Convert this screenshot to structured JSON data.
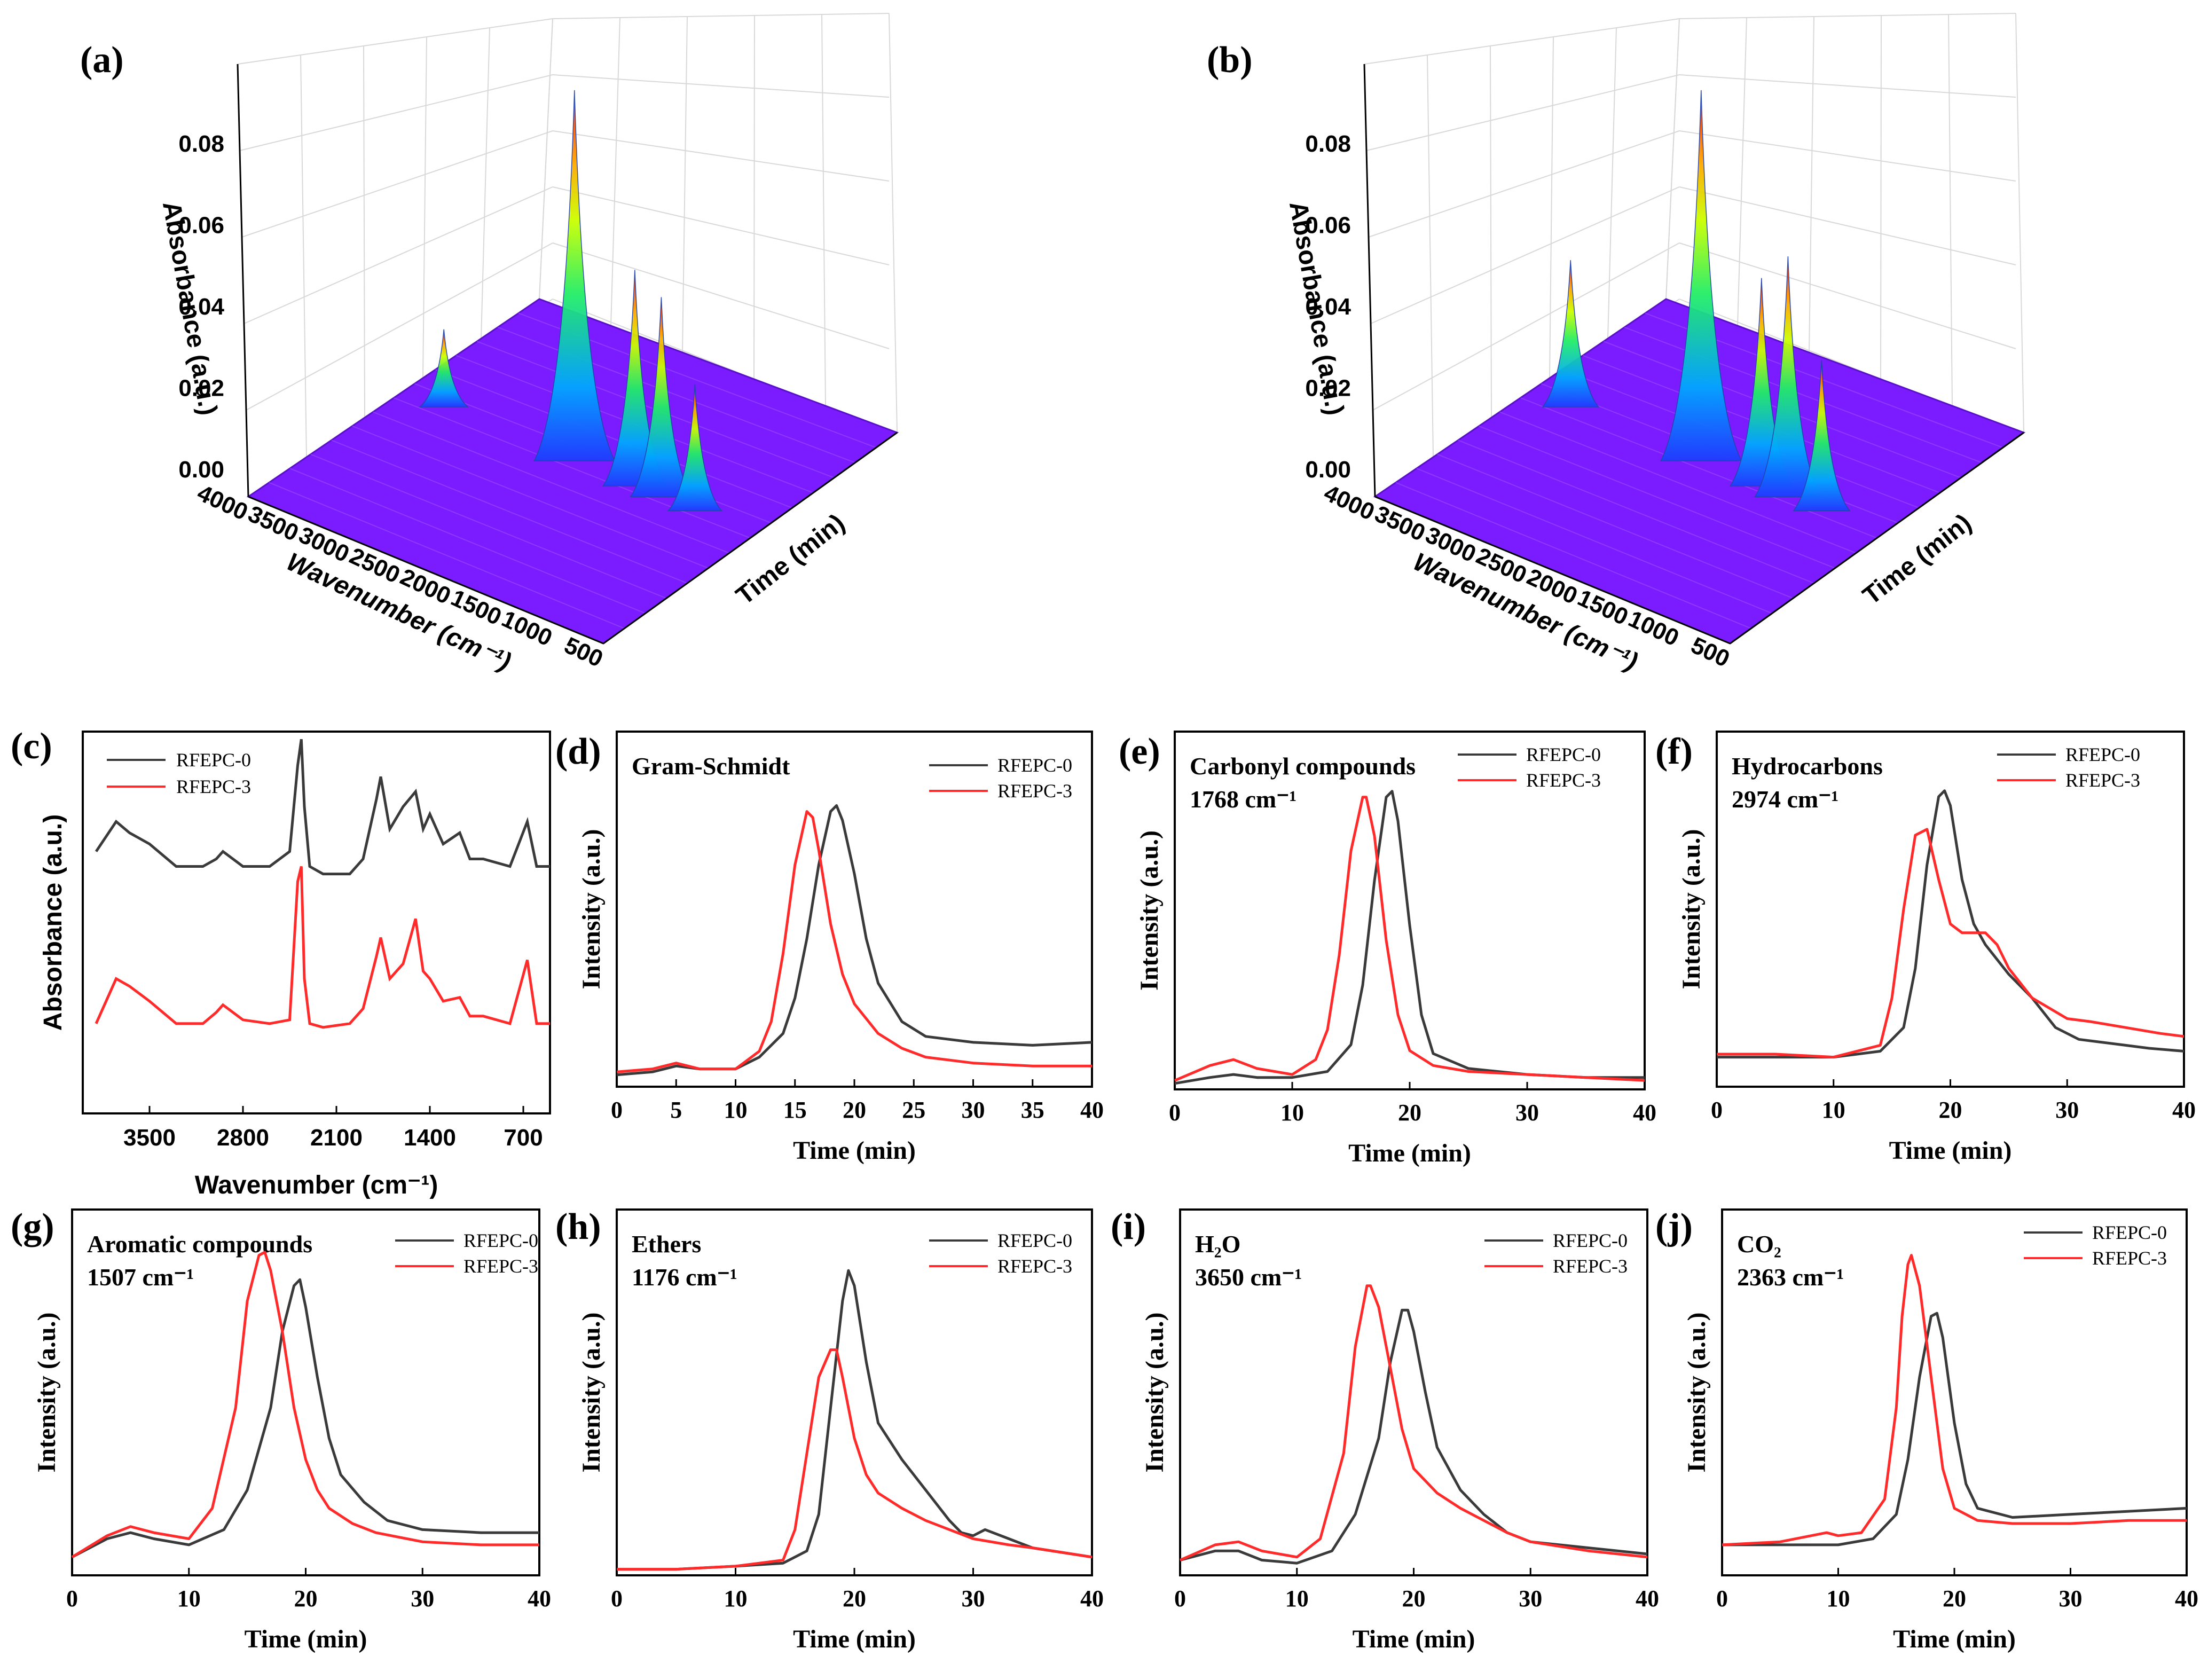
{
  "figure": {
    "series_names": [
      "RFEPC-0",
      "RFEPC-3"
    ],
    "colors": {
      "RFEPC-0": "#3a3a3a",
      "RFEPC-3": "#ff2a2a"
    }
  },
  "panels": {
    "a": {
      "label": "(a)"
    },
    "b": {
      "label": "(b)"
    },
    "c": {
      "label": "(c)"
    },
    "d": {
      "label": "(d)"
    },
    "e": {
      "label": "(e)"
    },
    "f": {
      "label": "(f)"
    },
    "g": {
      "label": "(g)"
    },
    "h": {
      "label": "(h)"
    },
    "i": {
      "label": "(i)"
    },
    "j": {
      "label": "(j)"
    }
  },
  "chart_data": [
    {
      "id": "a",
      "type": "surface3d",
      "title": "",
      "zlabel": "Absorbance (a.u.)",
      "xlabel": "Wavenumber (cm⁻¹)",
      "ylabel": "Time (min)",
      "z_ticks": [
        "0.00",
        "0.02",
        "0.04",
        "0.06",
        "0.08"
      ],
      "x_ticks": [
        "4000",
        "3500",
        "3000",
        "2500",
        "2000",
        "1500",
        "1000",
        "500"
      ],
      "peaks": [
        {
          "wavenumber": 3650,
          "absorbance": 0.018
        },
        {
          "wavenumber": 2363,
          "absorbance": 0.09
        },
        {
          "wavenumber": 1768,
          "absorbance": 0.052
        },
        {
          "wavenumber": 1507,
          "absorbance": 0.048
        },
        {
          "wavenumber": 1176,
          "absorbance": 0.03
        }
      ]
    },
    {
      "id": "b",
      "type": "surface3d",
      "title": "",
      "zlabel": "Absorbance (a.u.)",
      "xlabel": "Wavenumber (cm⁻¹)",
      "ylabel": "Time (min)",
      "z_ticks": [
        "0.00",
        "0.02",
        "0.04",
        "0.06",
        "0.08"
      ],
      "x_ticks": [
        "4000",
        "3500",
        "3000",
        "2500",
        "2000",
        "1500",
        "1000",
        "500"
      ],
      "peaks": [
        {
          "wavenumber": 3650,
          "absorbance": 0.035
        },
        {
          "wavenumber": 2363,
          "absorbance": 0.09
        },
        {
          "wavenumber": 1768,
          "absorbance": 0.05
        },
        {
          "wavenumber": 1507,
          "absorbance": 0.058
        },
        {
          "wavenumber": 1176,
          "absorbance": 0.036
        }
      ]
    },
    {
      "id": "c",
      "type": "line",
      "title": "",
      "xlabel": "Wavenumber (cm⁻¹)",
      "ylabel": "Absorbance (a.u.)",
      "x_ticks": [
        "3500",
        "2800",
        "2100",
        "1400",
        "700"
      ],
      "xlim": [
        4000,
        500
      ],
      "series": [
        {
          "name": "RFEPC-0",
          "x": [
            3900,
            3750,
            3650,
            3500,
            3300,
            3100,
            3000,
            2950,
            2800,
            2600,
            2450,
            2390,
            2363,
            2340,
            2300,
            2200,
            2000,
            1900,
            1800,
            1768,
            1700,
            1600,
            1507,
            1450,
            1400,
            1300,
            1176,
            1100,
            1000,
            800,
            670,
            600,
            500
          ],
          "y": [
            0.7,
            0.78,
            0.75,
            0.72,
            0.66,
            0.66,
            0.68,
            0.7,
            0.66,
            0.66,
            0.7,
            0.93,
            1.0,
            0.82,
            0.66,
            0.64,
            0.64,
            0.68,
            0.84,
            0.9,
            0.76,
            0.82,
            0.86,
            0.76,
            0.8,
            0.72,
            0.75,
            0.68,
            0.68,
            0.66,
            0.78,
            0.66,
            0.66
          ]
        },
        {
          "name": "RFEPC-3",
          "x": [
            3900,
            3750,
            3650,
            3500,
            3300,
            3100,
            3000,
            2950,
            2800,
            2600,
            2450,
            2390,
            2363,
            2340,
            2300,
            2200,
            2000,
            1900,
            1800,
            1768,
            1700,
            1600,
            1507,
            1450,
            1400,
            1300,
            1176,
            1100,
            1000,
            800,
            670,
            600,
            500
          ],
          "y": [
            0.24,
            0.36,
            0.34,
            0.3,
            0.24,
            0.24,
            0.27,
            0.29,
            0.25,
            0.24,
            0.25,
            0.62,
            0.66,
            0.36,
            0.24,
            0.23,
            0.24,
            0.28,
            0.42,
            0.47,
            0.36,
            0.4,
            0.52,
            0.38,
            0.36,
            0.3,
            0.31,
            0.26,
            0.26,
            0.24,
            0.41,
            0.24,
            0.24
          ]
        }
      ]
    },
    {
      "id": "d",
      "type": "line",
      "title": "Gram-Schmidt",
      "xlabel": "Time (min)",
      "ylabel": "Intensity (a.u.)",
      "x_ticks": [
        "0",
        "5",
        "10",
        "15",
        "20",
        "25",
        "30",
        "35",
        "40"
      ],
      "xlim": [
        0,
        40
      ],
      "ylim": [
        0,
        1.2
      ],
      "series": [
        {
          "name": "RFEPC-0",
          "x": [
            0,
            3,
            5,
            7,
            10,
            12,
            14,
            15,
            16,
            17,
            18,
            18.5,
            19,
            20,
            21,
            22,
            24,
            26,
            30,
            35,
            40
          ],
          "y": [
            0.04,
            0.05,
            0.07,
            0.06,
            0.06,
            0.1,
            0.18,
            0.3,
            0.5,
            0.75,
            0.93,
            0.95,
            0.9,
            0.72,
            0.5,
            0.35,
            0.22,
            0.17,
            0.15,
            0.14,
            0.15
          ]
        },
        {
          "name": "RFEPC-3",
          "x": [
            0,
            3,
            5,
            7,
            10,
            12,
            13,
            14,
            15,
            16,
            16.5,
            17,
            18,
            19,
            20,
            22,
            24,
            26,
            30,
            35,
            40
          ],
          "y": [
            0.05,
            0.06,
            0.08,
            0.06,
            0.06,
            0.12,
            0.22,
            0.45,
            0.75,
            0.93,
            0.91,
            0.8,
            0.55,
            0.38,
            0.28,
            0.18,
            0.13,
            0.1,
            0.08,
            0.07,
            0.07
          ]
        }
      ]
    },
    {
      "id": "e",
      "type": "line",
      "title": "Carbonyl compounds",
      "subtitle": "1768 cm⁻¹",
      "xlabel": "Time (min)",
      "ylabel": "Intensity (a.u.)",
      "x_ticks": [
        "0",
        "10",
        "20",
        "30",
        "40"
      ],
      "xlim": [
        0,
        40
      ],
      "ylim": [
        0,
        1.2
      ],
      "series": [
        {
          "name": "RFEPC-0",
          "x": [
            0,
            3,
            5,
            7,
            10,
            13,
            15,
            16,
            17,
            18,
            18.5,
            19,
            20,
            21,
            22,
            25,
            30,
            35,
            40
          ],
          "y": [
            0.02,
            0.04,
            0.05,
            0.04,
            0.04,
            0.06,
            0.15,
            0.35,
            0.7,
            0.98,
            1.0,
            0.9,
            0.55,
            0.25,
            0.12,
            0.07,
            0.05,
            0.04,
            0.04
          ]
        },
        {
          "name": "RFEPC-3",
          "x": [
            0,
            3,
            5,
            7,
            10,
            12,
            13,
            14,
            15,
            16,
            16.3,
            17,
            18,
            19,
            20,
            22,
            25,
            30,
            35,
            40
          ],
          "y": [
            0.03,
            0.08,
            0.1,
            0.07,
            0.05,
            0.1,
            0.2,
            0.45,
            0.8,
            0.98,
            0.98,
            0.85,
            0.5,
            0.25,
            0.13,
            0.08,
            0.06,
            0.05,
            0.04,
            0.03
          ]
        }
      ]
    },
    {
      "id": "f",
      "type": "line",
      "title": "Hydrocarbons",
      "subtitle": "2974 cm⁻¹",
      "xlabel": "Time (min)",
      "ylabel": "Intensity (a.u.)",
      "x_ticks": [
        "0",
        "10",
        "20",
        "30",
        "40"
      ],
      "xlim": [
        0,
        40
      ],
      "ylim": [
        0,
        1.2
      ],
      "series": [
        {
          "name": "RFEPC-0",
          "x": [
            0,
            5,
            10,
            14,
            16,
            17,
            18,
            19,
            19.5,
            20,
            21,
            22,
            23,
            25,
            27,
            29,
            31,
            33,
            35,
            37,
            40
          ],
          "y": [
            0.1,
            0.1,
            0.1,
            0.12,
            0.2,
            0.4,
            0.75,
            0.98,
            1.0,
            0.95,
            0.7,
            0.55,
            0.48,
            0.38,
            0.3,
            0.2,
            0.16,
            0.15,
            0.14,
            0.13,
            0.12
          ]
        },
        {
          "name": "RFEPC-3",
          "x": [
            0,
            5,
            10,
            14,
            15,
            16,
            17,
            18,
            19,
            20,
            21,
            22,
            23,
            24,
            25,
            27,
            30,
            32,
            35,
            38,
            40
          ],
          "y": [
            0.11,
            0.11,
            0.1,
            0.14,
            0.3,
            0.6,
            0.85,
            0.87,
            0.7,
            0.55,
            0.52,
            0.52,
            0.52,
            0.48,
            0.4,
            0.3,
            0.23,
            0.22,
            0.2,
            0.18,
            0.17
          ]
        }
      ]
    },
    {
      "id": "g",
      "type": "line",
      "title": "Aromatic compounds",
      "subtitle": "1507 cm⁻¹",
      "xlabel": "Time (min)",
      "ylabel": "Intensity (a.u.)",
      "x_ticks": [
        "0",
        "10",
        "20",
        "30",
        "40"
      ],
      "xlim": [
        0,
        40
      ],
      "ylim": [
        0,
        1.2
      ],
      "series": [
        {
          "name": "RFEPC-0",
          "x": [
            0,
            3,
            5,
            7,
            10,
            13,
            15,
            17,
            18,
            19,
            19.5,
            20,
            21,
            22,
            23,
            25,
            27,
            30,
            35,
            40
          ],
          "y": [
            0.06,
            0.12,
            0.14,
            0.12,
            0.1,
            0.15,
            0.28,
            0.55,
            0.8,
            0.95,
            0.97,
            0.88,
            0.65,
            0.45,
            0.33,
            0.24,
            0.18,
            0.15,
            0.14,
            0.14
          ]
        },
        {
          "name": "RFEPC-3",
          "x": [
            0,
            3,
            5,
            7,
            10,
            12,
            14,
            15,
            16,
            16.5,
            17,
            18,
            19,
            20,
            21,
            22,
            24,
            26,
            30,
            35,
            40
          ],
          "y": [
            0.06,
            0.13,
            0.16,
            0.14,
            0.12,
            0.22,
            0.55,
            0.9,
            1.05,
            1.06,
            1.0,
            0.8,
            0.55,
            0.38,
            0.28,
            0.22,
            0.17,
            0.14,
            0.11,
            0.1,
            0.1
          ]
        }
      ]
    },
    {
      "id": "h",
      "type": "line",
      "title": "Ethers",
      "subtitle": "1176 cm⁻¹",
      "xlabel": "Time (min)",
      "ylabel": "Intensity (a.u.)",
      "x_ticks": [
        "0",
        "10",
        "20",
        "30",
        "40"
      ],
      "xlim": [
        0,
        40
      ],
      "ylim": [
        0,
        1.2
      ],
      "series": [
        {
          "name": "RFEPC-0",
          "x": [
            0,
            5,
            10,
            14,
            16,
            17,
            18,
            19,
            19.5,
            20,
            21,
            22,
            24,
            26,
            28,
            29,
            30,
            31,
            33,
            35,
            40
          ],
          "y": [
            0.02,
            0.02,
            0.03,
            0.04,
            0.08,
            0.2,
            0.55,
            0.9,
            1.0,
            0.95,
            0.7,
            0.5,
            0.38,
            0.28,
            0.18,
            0.14,
            0.13,
            0.15,
            0.12,
            0.09,
            0.06
          ]
        },
        {
          "name": "RFEPC-3",
          "x": [
            0,
            5,
            10,
            14,
            15,
            16,
            17,
            18,
            18.5,
            19,
            20,
            21,
            22,
            24,
            26,
            28,
            30,
            33,
            35,
            40
          ],
          "y": [
            0.02,
            0.02,
            0.03,
            0.05,
            0.15,
            0.4,
            0.65,
            0.74,
            0.74,
            0.65,
            0.45,
            0.33,
            0.27,
            0.22,
            0.18,
            0.15,
            0.12,
            0.1,
            0.09,
            0.06
          ]
        }
      ]
    },
    {
      "id": "i",
      "type": "line",
      "title": "H₂O",
      "subtitle": "3650 cm⁻¹",
      "xlabel": "Time (min)",
      "ylabel": "Intensity (a.u.)",
      "x_ticks": [
        "0",
        "10",
        "20",
        "30",
        "40"
      ],
      "xlim": [
        0,
        40
      ],
      "ylim": [
        0,
        1.2
      ],
      "series": [
        {
          "name": "RFEPC-0",
          "x": [
            0,
            3,
            5,
            7,
            10,
            13,
            15,
            17,
            18,
            19,
            19.5,
            20,
            21,
            22,
            24,
            26,
            28,
            30,
            35,
            40
          ],
          "y": [
            0.05,
            0.08,
            0.08,
            0.05,
            0.04,
            0.08,
            0.2,
            0.45,
            0.7,
            0.87,
            0.87,
            0.8,
            0.6,
            0.42,
            0.28,
            0.2,
            0.14,
            0.11,
            0.09,
            0.07
          ]
        },
        {
          "name": "RFEPC-3",
          "x": [
            0,
            3,
            5,
            7,
            10,
            12,
            14,
            15,
            16,
            16.3,
            17,
            18,
            19,
            20,
            22,
            24,
            26,
            28,
            30,
            35,
            40
          ],
          "y": [
            0.05,
            0.1,
            0.11,
            0.08,
            0.06,
            0.12,
            0.4,
            0.75,
            0.95,
            0.95,
            0.88,
            0.68,
            0.48,
            0.35,
            0.27,
            0.22,
            0.18,
            0.14,
            0.11,
            0.08,
            0.06
          ]
        }
      ]
    },
    {
      "id": "j",
      "type": "line",
      "title": "CO₂",
      "subtitle": "2363 cm⁻¹",
      "xlabel": "Time (min)",
      "ylabel": "Intensity (a.u.)",
      "x_ticks": [
        "0",
        "10",
        "20",
        "30",
        "40"
      ],
      "xlim": [
        0,
        40
      ],
      "ylim": [
        0,
        1.2
      ],
      "series": [
        {
          "name": "RFEPC-0",
          "x": [
            0,
            5,
            10,
            13,
            15,
            16,
            17,
            18,
            18.5,
            19,
            20,
            21,
            22,
            25,
            30,
            35,
            40
          ],
          "y": [
            0.1,
            0.1,
            0.1,
            0.12,
            0.2,
            0.38,
            0.65,
            0.85,
            0.86,
            0.78,
            0.5,
            0.3,
            0.22,
            0.19,
            0.2,
            0.21,
            0.22
          ]
        },
        {
          "name": "RFEPC-3",
          "x": [
            0,
            5,
            9,
            10,
            12,
            14,
            15,
            15.5,
            16,
            16.3,
            17,
            18,
            19,
            20,
            22,
            25,
            30,
            35,
            40
          ],
          "y": [
            0.1,
            0.11,
            0.14,
            0.13,
            0.14,
            0.25,
            0.55,
            0.85,
            1.02,
            1.05,
            0.95,
            0.65,
            0.35,
            0.22,
            0.18,
            0.17,
            0.17,
            0.18,
            0.18
          ]
        }
      ]
    }
  ]
}
